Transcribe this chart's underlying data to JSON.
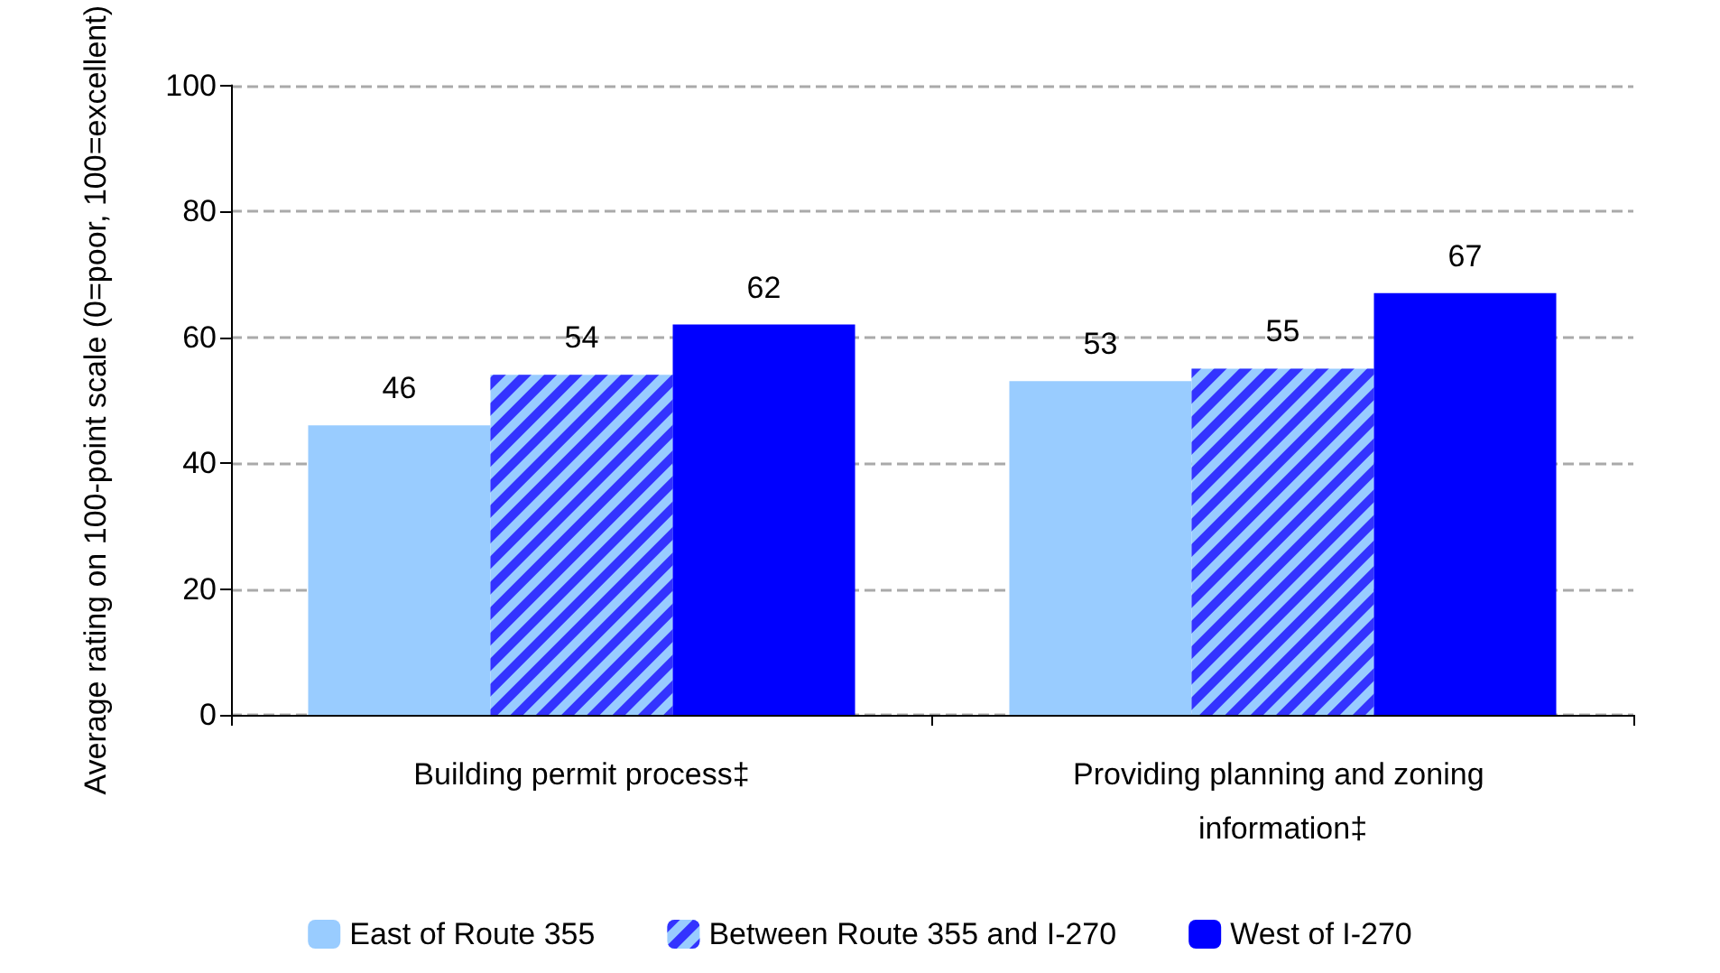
{
  "chart_data": {
    "type": "bar",
    "ylabel": "Average rating on 100-point scale (0=poor, 100=excellent)",
    "categories": [
      "Building permit process‡",
      "Providing planning and zoning information‡"
    ],
    "series": [
      {
        "name": "East of Route 355",
        "color": "#99ccff",
        "values": [
          46,
          53
        ]
      },
      {
        "name": "Between Route 355 and I-270",
        "color": "#3333ff",
        "values": [
          54,
          55
        ]
      },
      {
        "name": "West of I-270",
        "color": "#0000ff",
        "values": [
          62,
          67
        ]
      }
    ],
    "ylim": [
      0,
      100
    ],
    "yticks": [
      0,
      20,
      40,
      60,
      80,
      100
    ],
    "grid": "y",
    "legend": "bottom",
    "data_labels": true
  }
}
